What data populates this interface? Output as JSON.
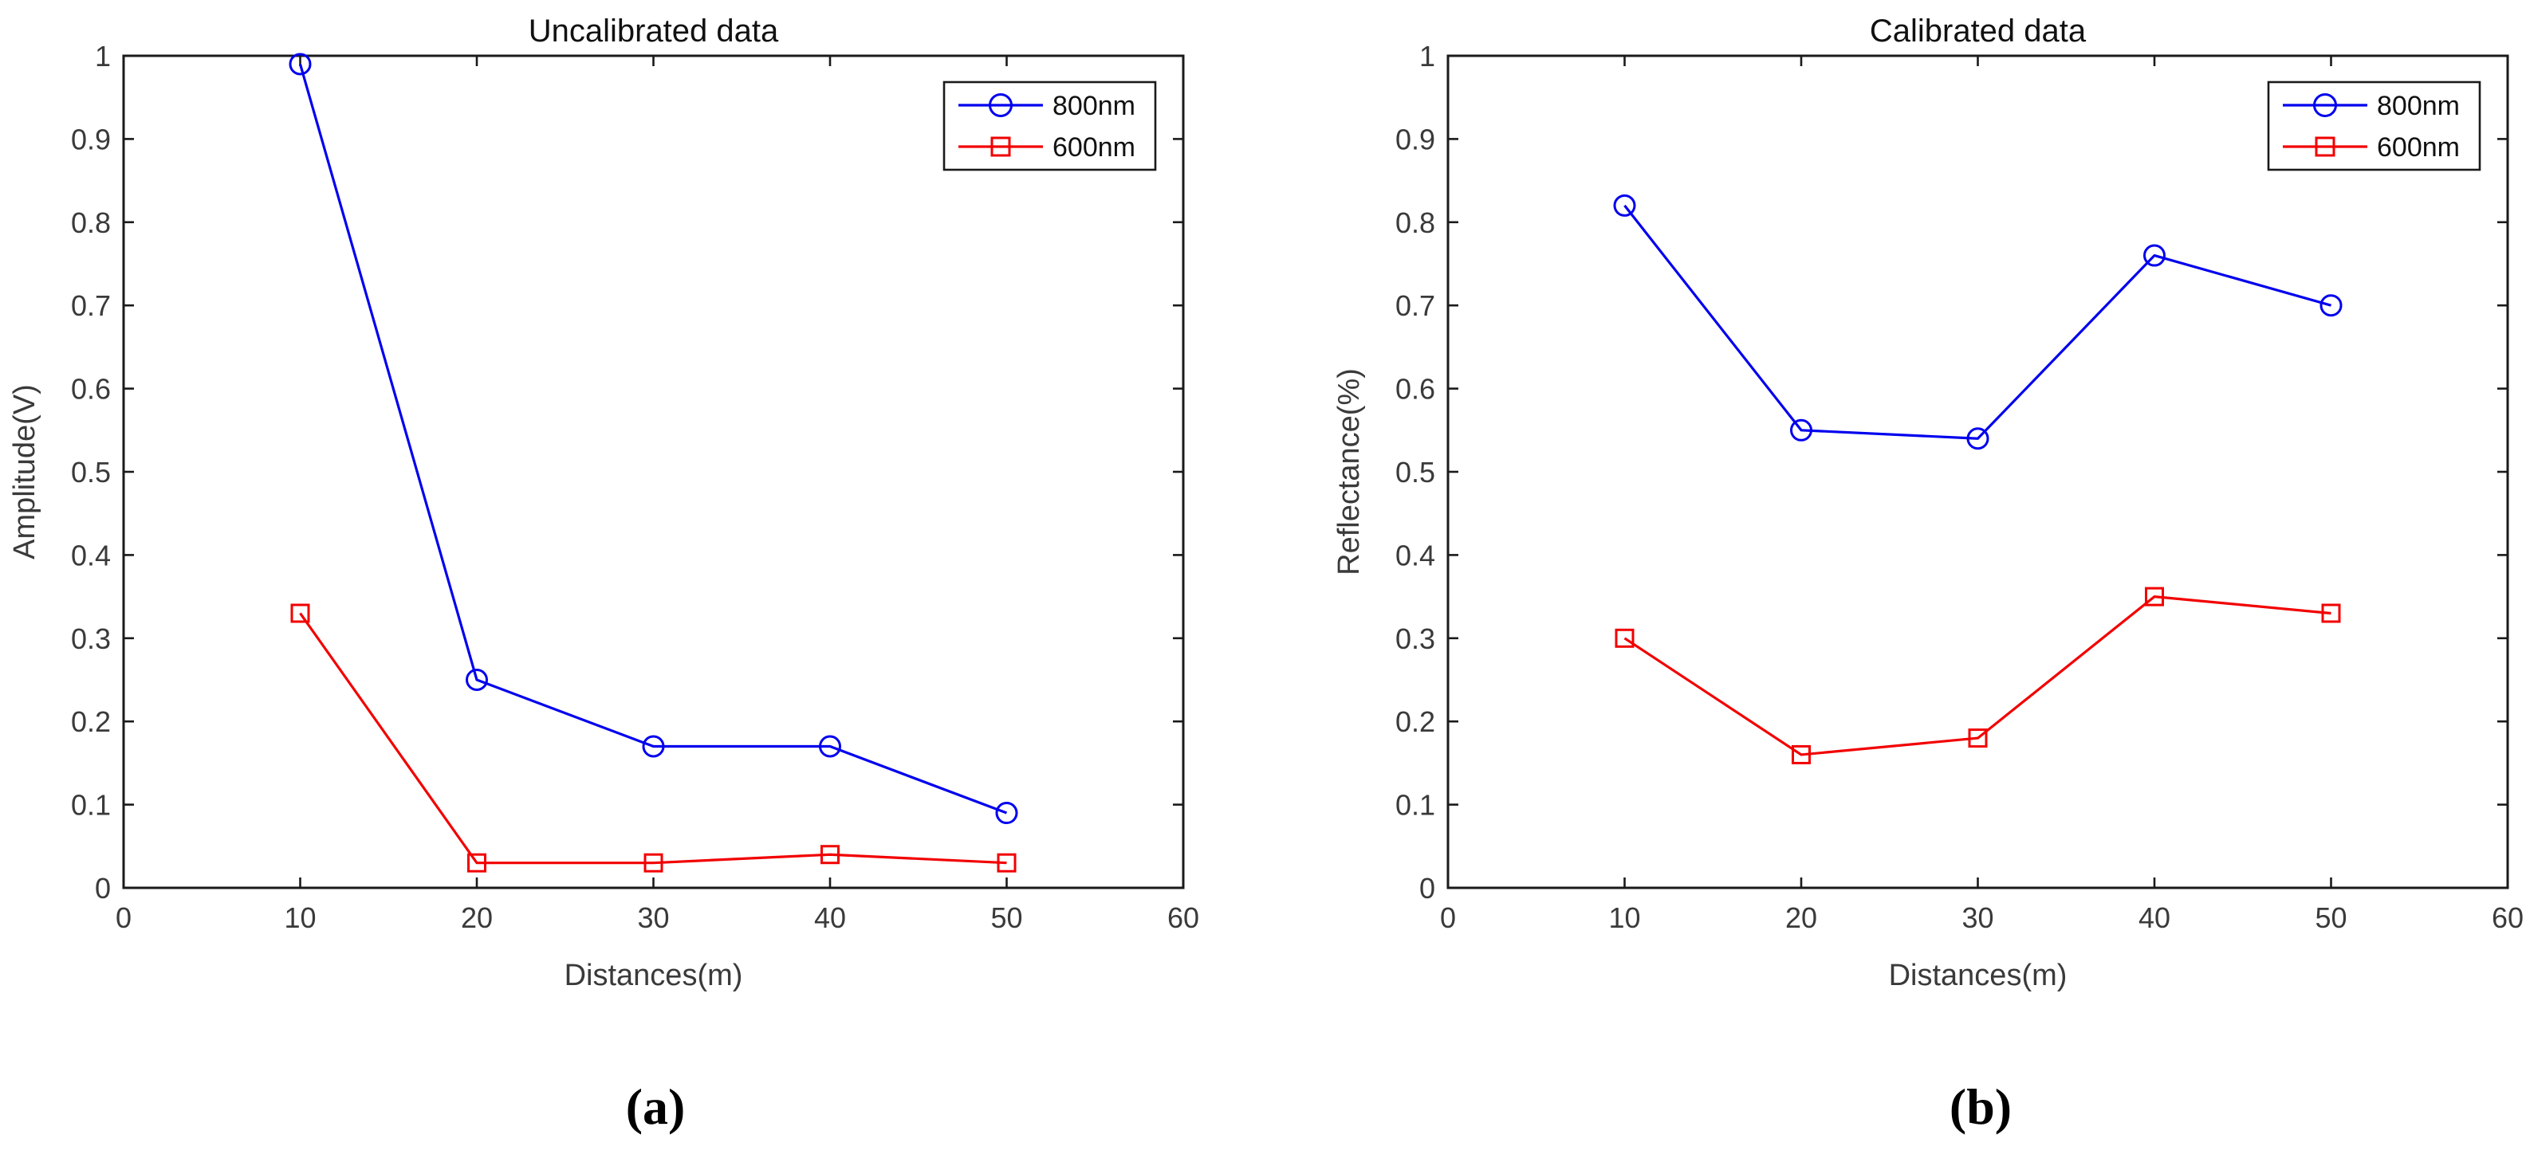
{
  "style": {
    "axis_color": "#1a1a1a",
    "tick_label_color": "#3a3a3a",
    "title_color": "#111111",
    "blue": "#0000EE",
    "red": "#F20000",
    "background": "#ffffff"
  },
  "chart_data": [
    {
      "type": "line",
      "title": "Uncalibrated data",
      "xlabel": "Distances(m)",
      "ylabel": "Amplitude(V)",
      "caption": "(a)",
      "grid": false,
      "legend_position": "top-right",
      "xlim": [
        0,
        60
      ],
      "ylim": [
        0,
        1
      ],
      "xtick_values": [
        0,
        10,
        20,
        30,
        40,
        50,
        60
      ],
      "xtick_labels": [
        "0",
        "10",
        "20",
        "30",
        "40",
        "50",
        "60"
      ],
      "ytick_values": [
        0,
        0.1,
        0.2,
        0.3,
        0.4,
        0.5,
        0.6,
        0.7,
        0.8,
        0.9,
        1
      ],
      "ytick_labels": [
        "0",
        "0.1",
        "0.2",
        "0.3",
        "0.4",
        "0.5",
        "0.6",
        "0.7",
        "0.8",
        "0.9",
        "1"
      ],
      "x": [
        10,
        20,
        30,
        40,
        50
      ],
      "series": [
        {
          "name": "800nm",
          "color": "#0000EE",
          "marker": "circle",
          "values": [
            0.99,
            0.25,
            0.17,
            0.17,
            0.09
          ]
        },
        {
          "name": "600nm",
          "color": "#F20000",
          "marker": "square",
          "values": [
            0.33,
            0.03,
            0.03,
            0.04,
            0.03
          ]
        }
      ]
    },
    {
      "type": "line",
      "title": "Calibrated data",
      "xlabel": "Distances(m)",
      "ylabel": "Reflectance(%)",
      "caption": "(b)",
      "grid": false,
      "legend_position": "top-right",
      "xlim": [
        0,
        60
      ],
      "ylim": [
        0,
        1
      ],
      "xtick_values": [
        0,
        10,
        20,
        30,
        40,
        50,
        60
      ],
      "xtick_labels": [
        "0",
        "10",
        "20",
        "30",
        "40",
        "50",
        "60"
      ],
      "ytick_values": [
        0,
        0.1,
        0.2,
        0.3,
        0.4,
        0.5,
        0.6,
        0.7,
        0.8,
        0.9,
        1
      ],
      "ytick_labels": [
        "0",
        "0.1",
        "0.2",
        "0.3",
        "0.4",
        "0.5",
        "0.6",
        "0.7",
        "0.8",
        "0.9",
        "1"
      ],
      "x": [
        10,
        20,
        30,
        40,
        50
      ],
      "series": [
        {
          "name": "800nm",
          "color": "#0000EE",
          "marker": "circle",
          "values": [
            0.82,
            0.55,
            0.54,
            0.76,
            0.7
          ]
        },
        {
          "name": "600nm",
          "color": "#F20000",
          "marker": "square",
          "values": [
            0.3,
            0.16,
            0.18,
            0.35,
            0.33
          ]
        }
      ]
    }
  ]
}
